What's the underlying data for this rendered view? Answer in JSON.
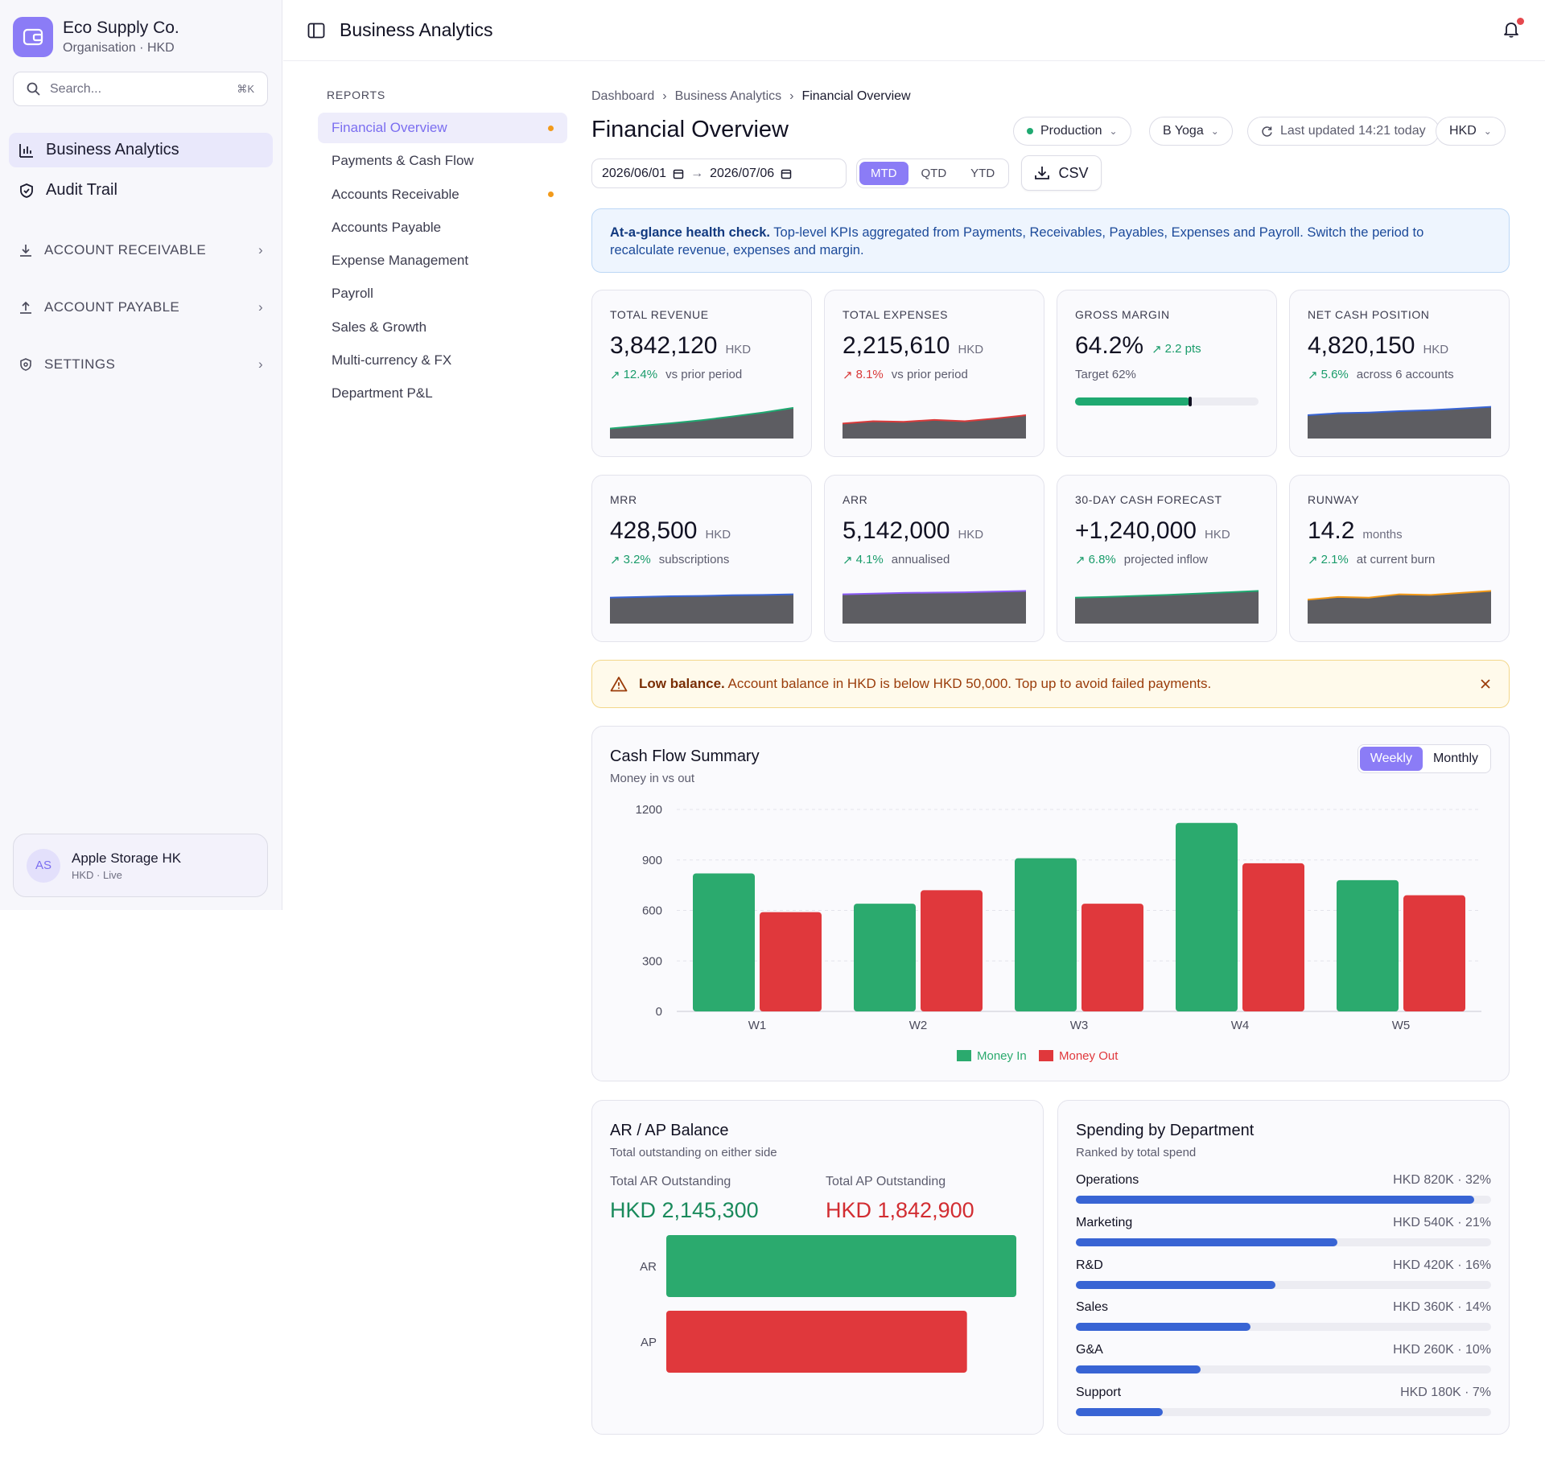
{
  "org": {
    "name": "Eco Supply Co.",
    "sub": "Organisation · HKD"
  },
  "search": {
    "placeholder": "Search...",
    "shortcut": "⌘K"
  },
  "sidebar": {
    "items": [
      {
        "label": "Business Analytics",
        "icon": "bar-chart-icon"
      },
      {
        "label": "Audit Trail",
        "icon": "shield-check-icon"
      }
    ],
    "groups": [
      {
        "label": "ACCOUNT RECEIVABLE",
        "icon": "download-icon"
      },
      {
        "label": "ACCOUNT PAYABLE",
        "icon": "upload-icon"
      },
      {
        "label": "SETTINGS",
        "icon": "shield-gear-icon"
      }
    ]
  },
  "account": {
    "initials": "AS",
    "name": "Apple Storage HK",
    "sub": "HKD · Live"
  },
  "topbar": {
    "title": "Business Analytics"
  },
  "reports": {
    "title": "REPORTS",
    "items": [
      {
        "label": "Financial Overview",
        "dot": true
      },
      {
        "label": "Payments & Cash Flow",
        "dot": false
      },
      {
        "label": "Accounts Receivable",
        "dot": true
      },
      {
        "label": "Accounts Payable",
        "dot": false
      },
      {
        "label": "Expense Management",
        "dot": false
      },
      {
        "label": "Payroll",
        "dot": false
      },
      {
        "label": "Sales & Growth",
        "dot": false
      },
      {
        "label": "Multi-currency & FX",
        "dot": false
      },
      {
        "label": "Department P&L",
        "dot": false
      }
    ]
  },
  "breadcrumb": [
    "Dashboard",
    "Business Analytics",
    "Financial Overview"
  ],
  "page": {
    "title": "Financial Overview",
    "environment": "Production",
    "entity": "B Yoga",
    "last_updated": "Last updated 14:21 today",
    "currency": "HKD",
    "date_from": "2026/06/01",
    "date_to": "2026/07/06",
    "periods": [
      "MTD",
      "QTD",
      "YTD"
    ],
    "active_period": "MTD",
    "csv_label": "CSV"
  },
  "info": {
    "bold": "At-a-glance health check.",
    "text": " Top-level KPIs aggregated from Payments, Receivables, Payables, Expenses and Payroll. Switch the period to recalculate revenue, expenses and margin."
  },
  "kpis": [
    {
      "label": "TOTAL REVENUE",
      "value": "3,842,120",
      "unit": "HKD",
      "change": "12.4%",
      "note": "vs prior period",
      "trend": "up",
      "spark_color": "#1fa971",
      "spark": [
        0.3,
        0.38,
        0.46,
        0.55,
        0.66,
        0.78,
        0.92
      ]
    },
    {
      "label": "TOTAL EXPENSES",
      "value": "2,215,610",
      "unit": "HKD",
      "change": "8.1%",
      "note": "vs prior period",
      "trend": "red",
      "spark_color": "#d93a3a",
      "spark": [
        0.45,
        0.52,
        0.5,
        0.56,
        0.52,
        0.6,
        0.7
      ]
    },
    {
      "label": "GROSS MARGIN",
      "value": "64.2%",
      "unit": "",
      "change": "2.2 pts",
      "note": "",
      "trend": "up",
      "target": "Target 62%",
      "progress": 0.642,
      "target_value": 0.62
    },
    {
      "label": "NET CASH POSITION",
      "value": "4,820,150",
      "unit": "HKD",
      "change": "5.6%",
      "note": "across 6 accounts",
      "trend": "up",
      "spark_color": "#3864d4",
      "spark": [
        0.7,
        0.76,
        0.78,
        0.82,
        0.85,
        0.9,
        0.95
      ]
    },
    {
      "label": "MRR",
      "value": "428,500",
      "unit": "HKD",
      "change": "3.2%",
      "note": "subscriptions",
      "trend": "up",
      "spark_color": "#3864d4",
      "spark": [
        0.78,
        0.8,
        0.82,
        0.83,
        0.85,
        0.86,
        0.88
      ]
    },
    {
      "label": "ARR",
      "value": "5,142,000",
      "unit": "HKD",
      "change": "4.1%",
      "note": "annualised",
      "trend": "up",
      "spark_color": "#8b5cf6",
      "spark": [
        0.88,
        0.9,
        0.92,
        0.93,
        0.94,
        0.96,
        0.98
      ]
    },
    {
      "label": "30-DAY CASH FORECAST",
      "value": "+1,240,000",
      "unit": "HKD",
      "change": "6.8%",
      "note": "projected inflow",
      "trend": "up",
      "spark_color": "#1fa971",
      "spark": [
        0.78,
        0.8,
        0.83,
        0.86,
        0.9,
        0.94,
        0.98
      ]
    },
    {
      "label": "RUNWAY",
      "value": "14.2",
      "unit": "months",
      "change": "2.1%",
      "note": "at current burn",
      "trend": "up",
      "spark_color": "#f29a1a",
      "spark": [
        0.72,
        0.8,
        0.78,
        0.88,
        0.86,
        0.92,
        0.98
      ]
    }
  ],
  "warning": {
    "bold": "Low balance.",
    "text": " Account balance in HKD is below HKD 50,000. Top up to avoid failed payments."
  },
  "cashflow": {
    "title": "Cash Flow Summary",
    "subtitle": "Money in vs out",
    "toggle": [
      "Weekly",
      "Monthly"
    ],
    "active": "Weekly"
  },
  "chart_data": {
    "type": "bar",
    "title": "Cash Flow Summary",
    "subtitle": "Money in vs out",
    "categories": [
      "W1",
      "W2",
      "W3",
      "W4",
      "W5"
    ],
    "series": [
      {
        "name": "Money In",
        "color": "#2baa6e",
        "values": [
          820,
          640,
          910,
          1120,
          780
        ]
      },
      {
        "name": "Money Out",
        "color": "#e0383c",
        "values": [
          590,
          720,
          640,
          880,
          690
        ]
      }
    ],
    "yticks": [
      0,
      300,
      600,
      900,
      1200
    ],
    "ylim": [
      0,
      1200
    ],
    "grid": true,
    "legend": "bottom"
  },
  "arap": {
    "title": "AR / AP Balance",
    "subtitle": "Total outstanding on either side",
    "ar_label": "Total AR Outstanding",
    "ar_value": "HKD 2,145,300",
    "ap_label": "Total AP Outstanding",
    "ap_value": "HKD 1,842,900",
    "bars": [
      {
        "name": "AR",
        "value": 2145300,
        "color": "#2baa6e"
      },
      {
        "name": "AP",
        "value": 1842900,
        "color": "#e0383c"
      }
    ]
  },
  "spending": {
    "title": "Spending by Department",
    "subtitle": "Ranked by total spend",
    "rows": [
      {
        "name": "Operations",
        "value": "HKD 820K · 32%",
        "share": 0.96
      },
      {
        "name": "Marketing",
        "value": "HKD 540K · 21%",
        "share": 0.63
      },
      {
        "name": "R&D",
        "value": "HKD 420K · 16%",
        "share": 0.48
      },
      {
        "name": "Sales",
        "value": "HKD 360K · 14%",
        "share": 0.42
      },
      {
        "name": "G&A",
        "value": "HKD 260K · 10%",
        "share": 0.3
      },
      {
        "name": "Support",
        "value": "HKD 180K · 7%",
        "share": 0.21
      }
    ]
  }
}
